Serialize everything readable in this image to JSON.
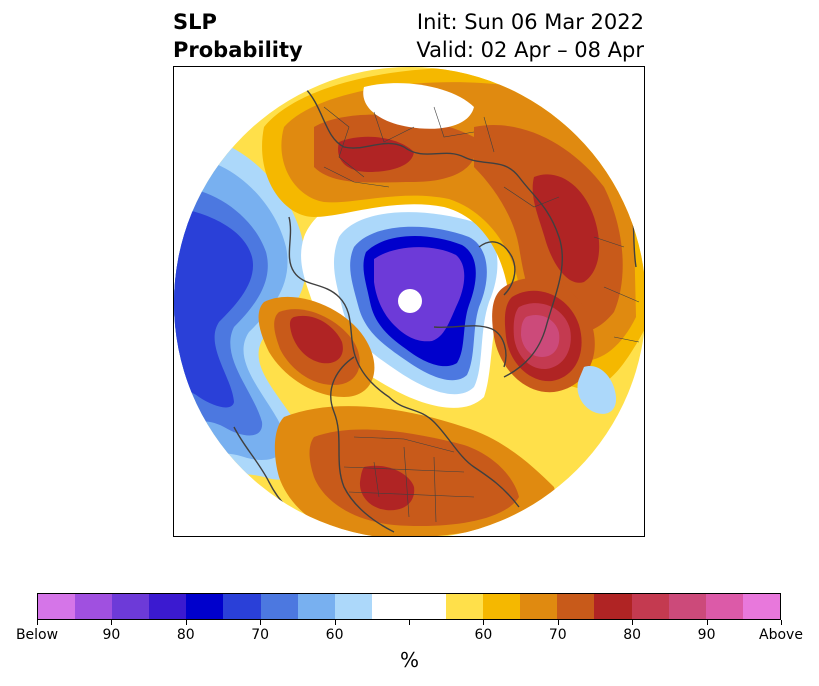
{
  "title": {
    "left_line1": "SLP",
    "left_line2": "Probability",
    "init": "Init: Sun 06 Mar 2022",
    "valid": "Valid: 02 Apr – 08 Apr"
  },
  "colorbar": {
    "unit": "%",
    "colors": [
      "#d575e8",
      "#a050e0",
      "#6d3ad8",
      "#3b1ad0",
      "#0000cc",
      "#2a40d8",
      "#4c78e0",
      "#78b0f0",
      "#acd8fa",
      "#ffffff",
      "#ffffff",
      "#ffe04a",
      "#f5b800",
      "#e08a10",
      "#c85a1a",
      "#b02424",
      "#c43a50",
      "#cc4a7a",
      "#dc5aa8",
      "#e878dc"
    ],
    "ticks": [
      "Below",
      "90",
      "80",
      "70",
      "60",
      "",
      "60",
      "70",
      "80",
      "90",
      "Above"
    ]
  },
  "map": {
    "projection": "polar-stereographic",
    "region": "northern-hemisphere"
  }
}
